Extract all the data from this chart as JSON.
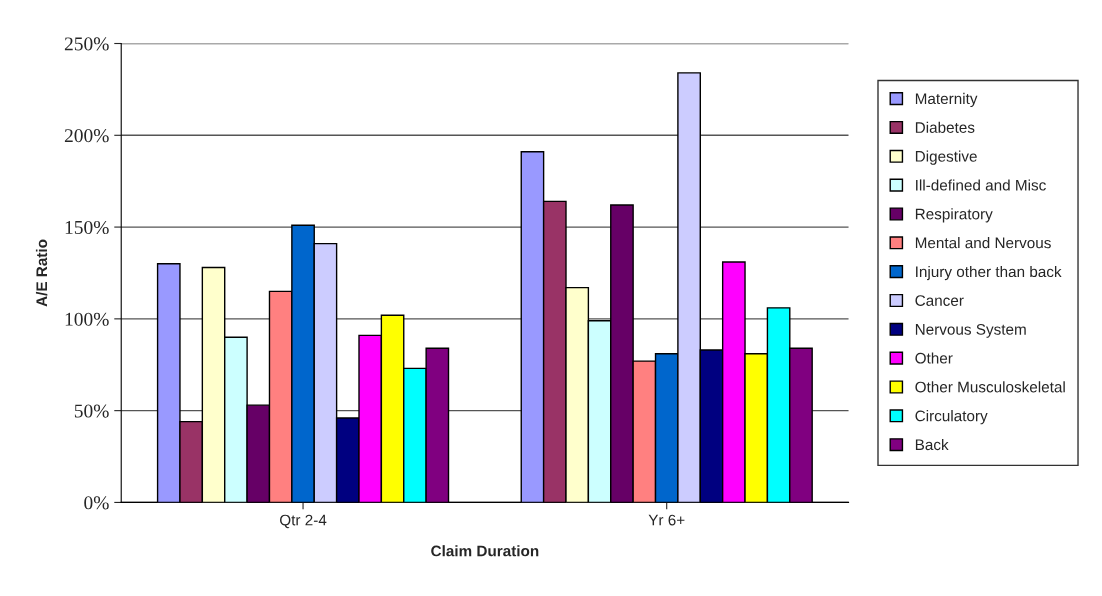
{
  "chart_data": {
    "type": "bar",
    "xlabel": "Claim Duration",
    "ylabel": "A/E Ratio",
    "categories": [
      "Qtr 2-4",
      "Yr 6+"
    ],
    "series": [
      {
        "name": "Maternity",
        "color": "#9999ff",
        "values": [
          130,
          191
        ]
      },
      {
        "name": "Diabetes",
        "color": "#993366",
        "values": [
          44,
          164
        ]
      },
      {
        "name": "Digestive",
        "color": "#ffffcc",
        "values": [
          128,
          117
        ]
      },
      {
        "name": "Ill-defined and Misc",
        "color": "#ccffff",
        "values": [
          90,
          99
        ]
      },
      {
        "name": "Respiratory",
        "color": "#660066",
        "values": [
          53,
          162
        ]
      },
      {
        "name": "Mental and Nervous",
        "color": "#ff8080",
        "values": [
          115,
          77
        ]
      },
      {
        "name": "Injury other than back",
        "color": "#0066cc",
        "values": [
          151,
          81
        ]
      },
      {
        "name": "Cancer",
        "color": "#ccccff",
        "values": [
          141,
          234
        ]
      },
      {
        "name": "Nervous System",
        "color": "#000080",
        "values": [
          46,
          83
        ]
      },
      {
        "name": "Other",
        "color": "#ff00ff",
        "values": [
          91,
          131
        ]
      },
      {
        "name": "Other Musculoskeletal",
        "color": "#ffff00",
        "values": [
          102,
          81
        ]
      },
      {
        "name": "Circulatory",
        "color": "#00ffff",
        "values": [
          73,
          106
        ]
      },
      {
        "name": "Back",
        "color": "#800080",
        "values": [
          84,
          84
        ]
      }
    ],
    "ylim": [
      0,
      250
    ],
    "yticks": [
      {
        "value": 0,
        "label": "0%"
      },
      {
        "value": 50,
        "label": "50%"
      },
      {
        "value": 100,
        "label": "100%"
      },
      {
        "value": 150,
        "label": "150%"
      },
      {
        "value": 200,
        "label": "200%"
      },
      {
        "value": 250,
        "label": "250%"
      }
    ],
    "grid": "y",
    "legend": "right"
  }
}
